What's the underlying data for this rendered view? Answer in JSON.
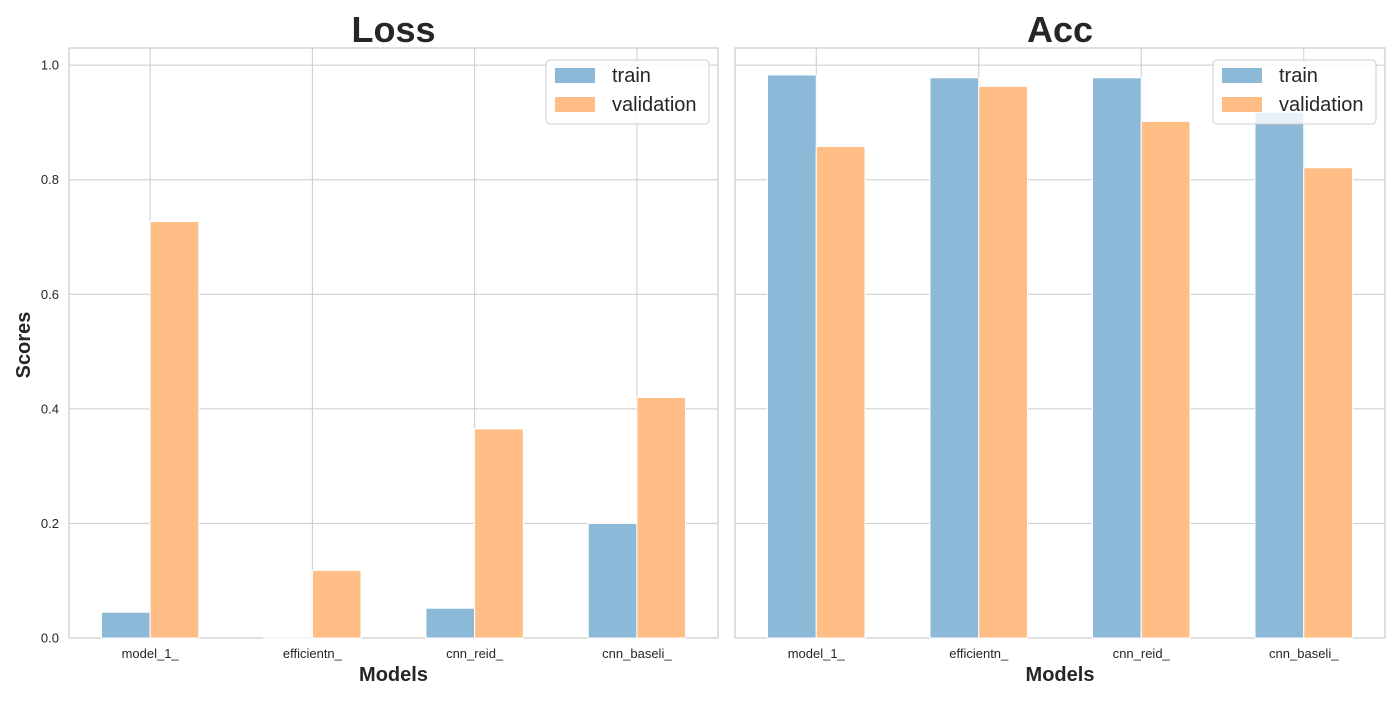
{
  "figure": {
    "ylabel": "Scores"
  },
  "chart_data": [
    {
      "type": "bar",
      "title": "Loss",
      "xlabel": "Models",
      "ylabel": "Scores",
      "categories": [
        "model_1_",
        "efficientn_",
        "cnn_reid_",
        "cnn_baseli_"
      ],
      "series": [
        {
          "name": "train",
          "values": [
            0.045,
            0.002,
            0.052,
            0.2
          ],
          "color": "#8db9d9"
        },
        {
          "name": "validation",
          "values": [
            0.727,
            0.118,
            0.365,
            0.42
          ],
          "color": "#ffbe86"
        }
      ],
      "ylim": [
        0,
        1.03
      ],
      "yticks": [
        "0.0",
        "0.2",
        "0.4",
        "0.6",
        "0.8",
        "1.0"
      ],
      "grid": true,
      "legend": "top-right"
    },
    {
      "type": "bar",
      "title": "Acc",
      "xlabel": "Models",
      "ylabel": "",
      "categories": [
        "model_1_",
        "efficientn_",
        "cnn_reid_",
        "cnn_baseli_"
      ],
      "series": [
        {
          "name": "train",
          "values": [
            0.983,
            0.978,
            0.978,
            0.918
          ],
          "color": "#8db9d9"
        },
        {
          "name": "validation",
          "values": [
            0.858,
            0.963,
            0.902,
            0.821
          ],
          "color": "#ffbe86"
        }
      ],
      "ylim": [
        0,
        1.03
      ],
      "yticks": [
        "0.0",
        "0.2",
        "0.4",
        "0.6",
        "0.8",
        "1.0"
      ],
      "shared_y": true,
      "grid": true,
      "legend": "top-right"
    }
  ]
}
